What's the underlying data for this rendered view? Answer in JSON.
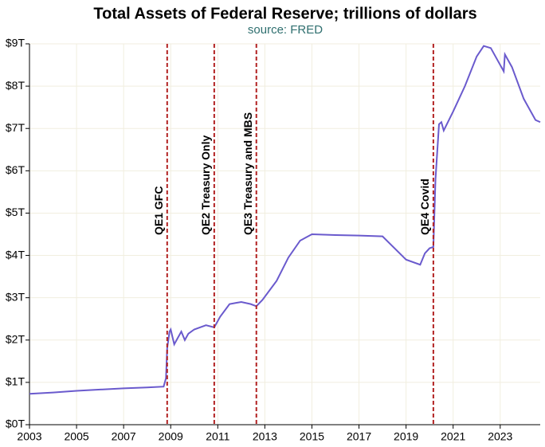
{
  "chart_data": {
    "type": "line",
    "title": "Total Assets of Federal Reserve; trillions of dollars",
    "subtitle": "source: FRED",
    "color": "#6a5acd",
    "grid": true,
    "xlim": [
      2003,
      2024.7
    ],
    "xticks": [
      2003,
      2005,
      2007,
      2009,
      2011,
      2013,
      2015,
      2017,
      2019,
      2021,
      2023
    ],
    "ylim": [
      0,
      9
    ],
    "yticks": [
      {
        "value": 0,
        "label": "$0T"
      },
      {
        "value": 1,
        "label": "$1T"
      },
      {
        "value": 2,
        "label": "$2T"
      },
      {
        "value": 3,
        "label": "$3T"
      },
      {
        "value": 4,
        "label": "$4T"
      },
      {
        "value": 5,
        "label": "$5T"
      },
      {
        "value": 6,
        "label": "$6T"
      },
      {
        "value": 7,
        "label": "$7T"
      },
      {
        "value": 8,
        "label": "$8T"
      },
      {
        "value": 9,
        "label": "$9T"
      }
    ],
    "x": [
      2003.0,
      2004.0,
      2005.0,
      2006.0,
      2007.0,
      2008.0,
      2008.7,
      2008.8,
      2008.85,
      2008.95,
      2009.0,
      2009.15,
      2009.3,
      2009.45,
      2009.6,
      2009.75,
      2010.0,
      2010.5,
      2010.85,
      2011.1,
      2011.5,
      2011.8,
      2012.0,
      2012.4,
      2012.64,
      2012.9,
      2013.5,
      2014.0,
      2014.5,
      2015.0,
      2016.0,
      2017.0,
      2018.0,
      2019.0,
      2019.6,
      2019.8,
      2020.0,
      2020.16,
      2020.25,
      2020.4,
      2020.5,
      2020.6,
      2021.0,
      2021.5,
      2022.0,
      2022.3,
      2022.6,
      2023.0,
      2023.15,
      2023.2,
      2023.5,
      2024.0,
      2024.5,
      2024.7
    ],
    "values": [
      0.73,
      0.76,
      0.8,
      0.83,
      0.86,
      0.88,
      0.9,
      1.1,
      1.8,
      2.2,
      2.25,
      1.9,
      2.05,
      2.2,
      2.0,
      2.15,
      2.25,
      2.35,
      2.3,
      2.55,
      2.85,
      2.88,
      2.9,
      2.85,
      2.8,
      2.95,
      3.4,
      3.95,
      4.35,
      4.5,
      4.48,
      4.47,
      4.45,
      3.9,
      3.78,
      4.05,
      4.17,
      4.2,
      5.8,
      7.1,
      7.15,
      6.95,
      7.4,
      8.0,
      8.7,
      8.95,
      8.9,
      8.5,
      8.35,
      8.75,
      8.45,
      7.7,
      7.2,
      7.15
    ],
    "annotation_color": "#b22222",
    "annotations": [
      {
        "x": 2008.85,
        "text": "QE1 GFC"
      },
      {
        "x": 2010.85,
        "text": "QE2 Treasury Only"
      },
      {
        "x": 2012.64,
        "text": "QE3 Treasury and MBS"
      },
      {
        "x": 2020.16,
        "text": "QE4 Covid"
      }
    ]
  }
}
